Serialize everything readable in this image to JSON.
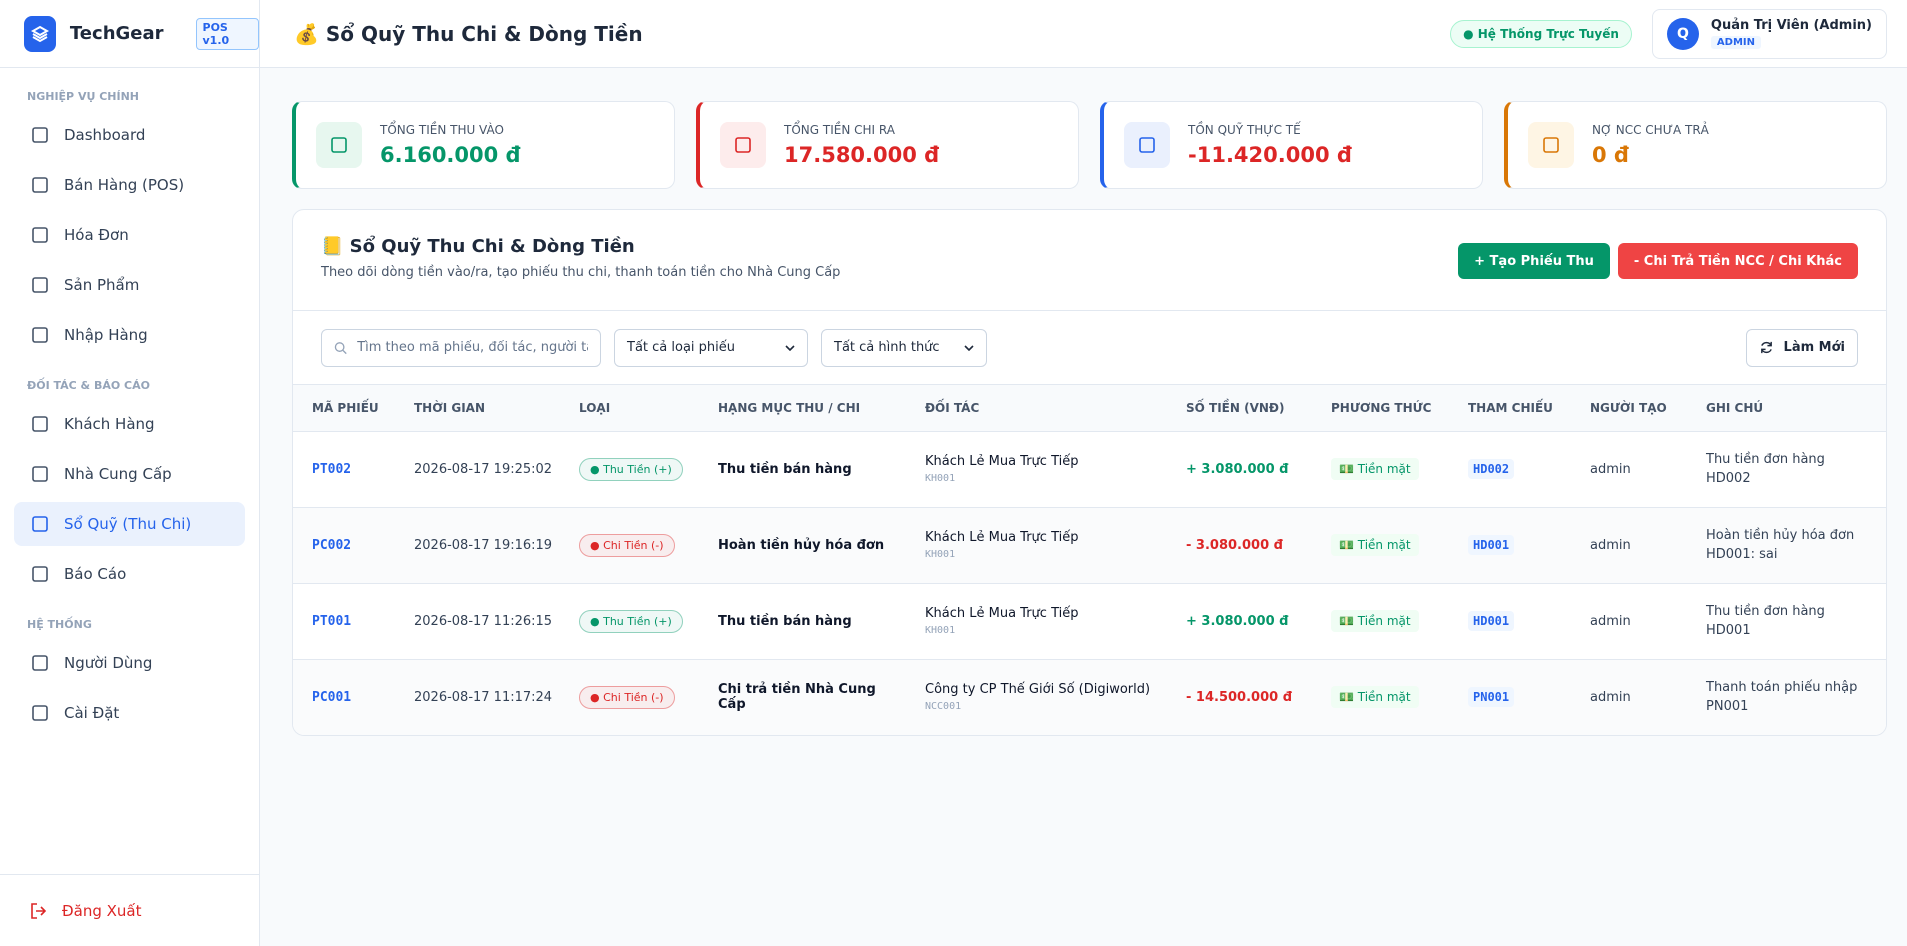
{
  "sidebar": {
    "brand": "TechGear",
    "version": "POS v1.0",
    "sections": [
      {
        "title": "NGHIỆP VỤ CHÍNH",
        "items": [
          "Dashboard",
          "Bán Hàng (POS)",
          "Hóa Đơn",
          "Sản Phẩm",
          "Nhập Hàng"
        ]
      },
      {
        "title": "ĐỐI TÁC & BÁO CÁO",
        "items": [
          "Khách Hàng",
          "Nhà Cung Cấp",
          "Sổ Quỹ (Thu Chi)",
          "Báo Cáo"
        ]
      },
      {
        "title": "HỆ THỐNG",
        "items": [
          "Người Dùng",
          "Cài Đặt"
        ]
      }
    ],
    "active": "Sổ Quỹ (Thu Chi)",
    "logout": "Đăng Xuất"
  },
  "header": {
    "title": "💰 Sổ Quỹ Thu Chi & Dòng Tiền",
    "status": "Hệ Thống Trực Tuyến",
    "user": {
      "avatar": "Q",
      "name": "Quản Trị Viên (Admin)",
      "role": "ADMIN"
    }
  },
  "stats": [
    {
      "label": "TỔNG TIỀN THU VÀO",
      "value": "6.160.000 đ",
      "color": "#059669",
      "bg": "#e7f7ef"
    },
    {
      "label": "TỔNG TIỀN CHI RA",
      "value": "17.580.000 đ",
      "color": "#dc2626",
      "bg": "#fdecec"
    },
    {
      "label": "TỒN QUỸ THỰC TẾ",
      "value": "-11.420.000 đ",
      "color": "#dc2626",
      "bg": "#eaf0fd",
      "accent": "#2563eb"
    },
    {
      "label": "NỢ NCC CHƯA TRẢ",
      "value": "0 đ",
      "color": "#d97706",
      "bg": "#fef5e4"
    }
  ],
  "panel": {
    "title": "📒 Sổ Quỹ Thu Chi & Dòng Tiền",
    "subtitle": "Theo dõi dòng tiền vào/ra, tạo phiếu thu chi, thanh toán tiền cho Nhà Cung Cấp",
    "buttons": [
      "+ Tạo Phiếu Thu",
      "- Chi Trả Tiền NCC / Chi Khác"
    ],
    "search_placeholder": "Tìm theo mã phiếu, đối tác, người tạo",
    "filters": [
      "Tất cả loại phiếu",
      "Tất cả hình thức"
    ],
    "refresh": "Làm Mới"
  },
  "table": {
    "headers": [
      "MÃ PHIẾU",
      "THỜI GIAN",
      "LOẠI",
      "HẠNG MỤC THU / CHI",
      "ĐỐI TÁC",
      "SỐ TIỀN (VNĐ)",
      "PHƯƠNG THỨC",
      "THAM CHIẾU",
      "NGƯỜI TẠO",
      "GHI CHÚ"
    ],
    "rows": [
      {
        "code": "PT002",
        "time": "2026-08-17 19:25:02",
        "type": "Thu Tiền (+)",
        "category": "Thu tiền bán hàng",
        "partner": "Khách Lẻ Mua Trực Tiếp",
        "partner_code": "KH001",
        "amount": "+ 3.080.000 đ",
        "method": "💵 Tiền mặt",
        "ref": "HD002",
        "creator": "admin",
        "note": "Thu tiền đơn hàng HD002",
        "color": "#059669"
      },
      {
        "code": "PC002",
        "time": "2026-08-17 19:16:19",
        "type": "Chi Tiền (-)",
        "category": "Hoàn tiền hủy hóa đơn",
        "partner": "Khách Lẻ Mua Trực Tiếp",
        "partner_code": "KH001",
        "amount": "- 3.080.000 đ",
        "method": "💵 Tiền mặt",
        "ref": "HD001",
        "creator": "admin",
        "note": "Hoàn tiền hủy hóa đơn HD001: sai",
        "color": "#dc2626"
      },
      {
        "code": "PT001",
        "time": "2026-08-17 11:26:15",
        "type": "Thu Tiền (+)",
        "category": "Thu tiền bán hàng",
        "partner": "Khách Lẻ Mua Trực Tiếp",
        "partner_code": "KH001",
        "amount": "+ 3.080.000 đ",
        "method": "💵 Tiền mặt",
        "ref": "HD001",
        "creator": "admin",
        "note": "Thu tiền đơn hàng HD001",
        "color": "#059669"
      },
      {
        "code": "PC001",
        "time": "2026-08-17 11:17:24",
        "type": "Chi Tiền (-)",
        "category": "Chi trả tiền Nhà Cung Cấp",
        "partner": "Công ty CP Thế Giới Số (Digiworld)",
        "partner_code": "NCC001",
        "amount": "- 14.500.000 đ",
        "method": "💵 Tiền mặt",
        "ref": "PN001",
        "creator": "admin",
        "note": "Thanh toán phiếu nhập PN001",
        "color": "#dc2626"
      }
    ]
  }
}
